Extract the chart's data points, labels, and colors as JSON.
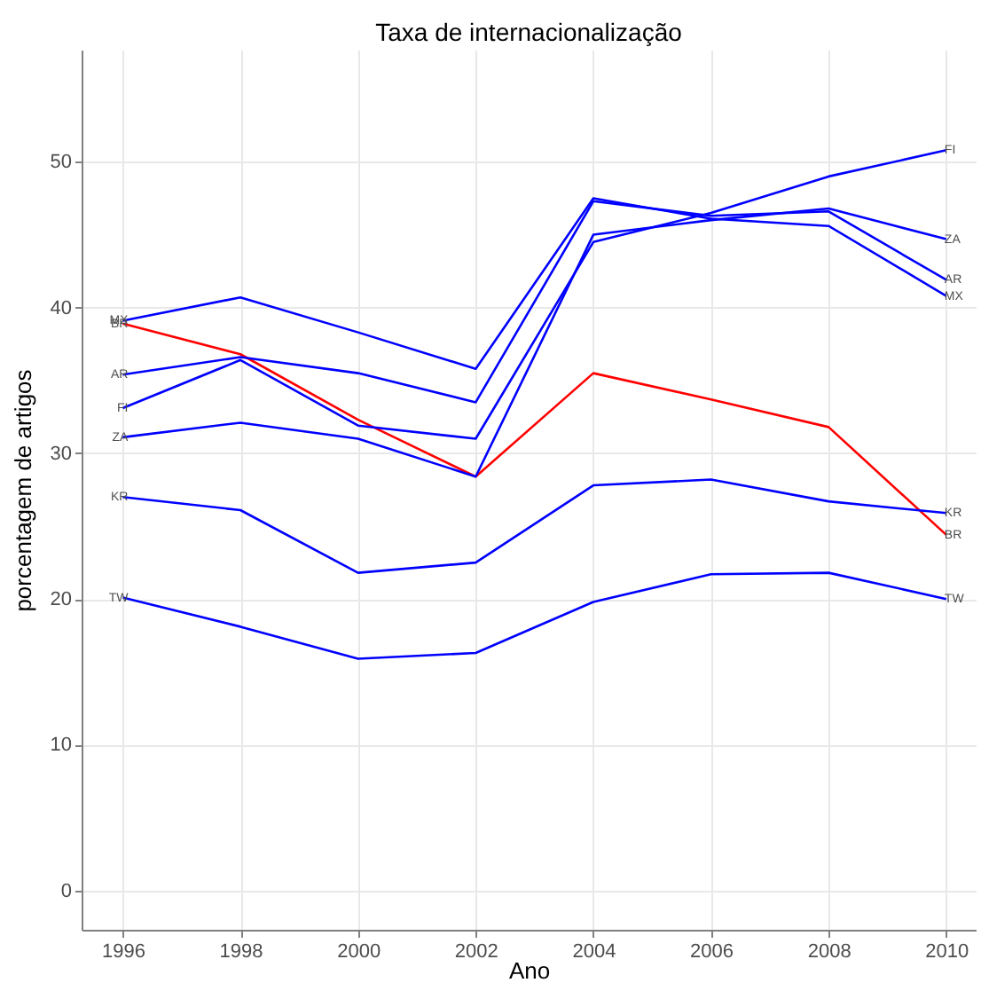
{
  "chart_data": {
    "type": "line",
    "title": "Taxa de internacionalização",
    "xlabel": "Ano",
    "ylabel": "porcentagem de artigos",
    "x": [
      1996,
      1998,
      2000,
      2002,
      2004,
      2006,
      2008,
      2010
    ],
    "series": [
      {
        "name": "MX",
        "color": "#0000ff",
        "values": [
          39.1,
          40.7,
          38.3,
          35.8,
          47.5,
          46.1,
          45.6,
          40.8
        ]
      },
      {
        "name": "BR",
        "color": "#ff0000",
        "values": [
          38.9,
          36.8,
          32.3,
          28.4,
          35.5,
          33.7,
          31.8,
          24.4
        ]
      },
      {
        "name": "AR",
        "color": "#0000ff",
        "values": [
          35.4,
          36.6,
          35.5,
          33.5,
          47.3,
          46.3,
          46.6,
          41.9
        ]
      },
      {
        "name": "FI",
        "color": "#0000ff",
        "values": [
          33.1,
          36.4,
          31.9,
          31.0,
          44.5,
          46.5,
          49.0,
          50.8
        ]
      },
      {
        "name": "ZA",
        "color": "#0000ff",
        "values": [
          31.1,
          32.1,
          31.0,
          28.4,
          45.0,
          46.0,
          46.8,
          44.7
        ]
      },
      {
        "name": "KR",
        "color": "#0000ff",
        "values": [
          27.0,
          26.1,
          21.8,
          22.5,
          27.8,
          28.2,
          26.7,
          25.9
        ]
      },
      {
        "name": "TW",
        "color": "#0000ff",
        "values": [
          20.1,
          18.1,
          15.9,
          16.3,
          19.8,
          21.7,
          21.8,
          20.0
        ]
      }
    ],
    "xlim": [
      1995.3,
      2010.5
    ],
    "xticks": [
      1996,
      1998,
      2000,
      2002,
      2004,
      2006,
      2008,
      2010
    ],
    "ylim": [
      -2.7,
      57.7
    ],
    "yticks": [
      0,
      10,
      20,
      30,
      40,
      50
    ],
    "grid": true,
    "legend": false
  }
}
